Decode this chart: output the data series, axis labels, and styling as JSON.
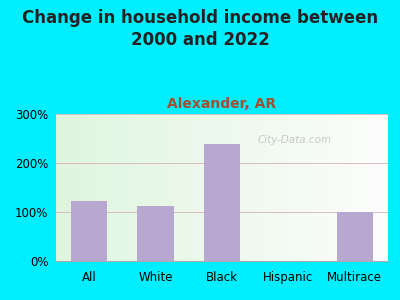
{
  "title": "Change in household income between\n2000 and 2022",
  "subtitle": "Alexander, AR",
  "categories": [
    "All",
    "White",
    "Black",
    "Hispanic",
    "Multirace"
  ],
  "values": [
    122,
    112,
    238,
    1,
    100
  ],
  "bar_color": "#b8a8d0",
  "title_fontsize": 12,
  "subtitle_fontsize": 10,
  "title_color": "#222222",
  "subtitle_color": "#a05030",
  "background_outer": "#00eeff",
  "ylim": [
    0,
    300
  ],
  "yticks": [
    0,
    100,
    200,
    300
  ],
  "grid_color": "#ddbbbb",
  "watermark": "City-Data.com",
  "watermark_color": "#aaaaaa"
}
